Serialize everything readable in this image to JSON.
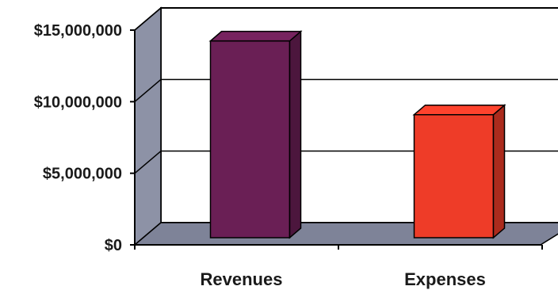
{
  "chart_data": {
    "type": "bar",
    "three_d": true,
    "categories": [
      "Revenues",
      "Expenses"
    ],
    "values": [
      14300000,
      9150000
    ],
    "colors": {
      "Revenues": "#6a1f55",
      "Expenses": "#ee3c28"
    },
    "yticks": [
      "$0",
      "$5,000,000",
      "$10,000,000",
      "$15,000,000"
    ],
    "ytick_values": [
      0,
      5000000,
      10000000,
      15000000
    ],
    "ylim": [
      0,
      15000000
    ],
    "grid": true,
    "legend": "none",
    "title": "",
    "xlabel": "",
    "ylabel": "",
    "back_wall_color": "#ffffff",
    "side_wall_color": "#8d92a6",
    "floor_color": "#7e8398"
  }
}
